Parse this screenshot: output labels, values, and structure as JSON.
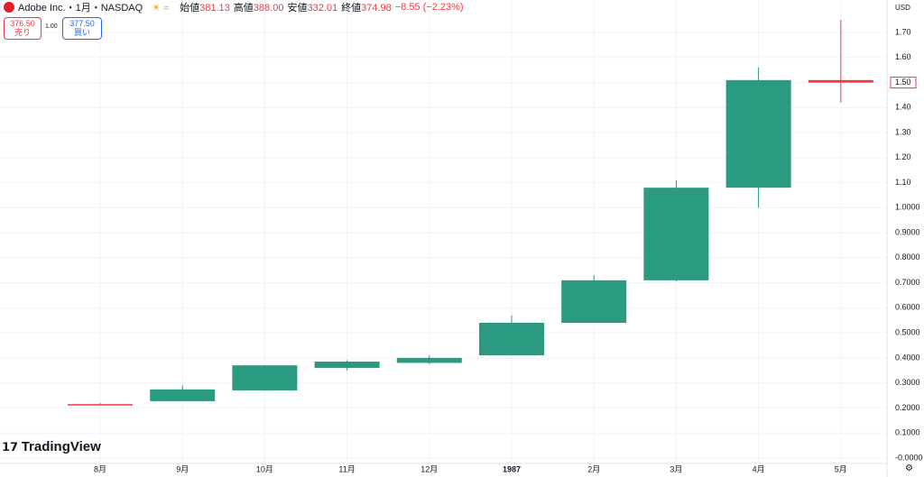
{
  "header": {
    "symbol": "Adobe Inc.・1月・NASDAQ",
    "stats": [
      {
        "name": "始値",
        "value": "381.13"
      },
      {
        "name": "高値",
        "value": "388.00"
      },
      {
        "name": "安値",
        "value": "332.01"
      },
      {
        "name": "終値",
        "value": "374.98"
      }
    ],
    "change": "−8.55 (−2.23%)",
    "sell_price": "376.50",
    "sell_label": "売り",
    "spread": "1.00",
    "buy_price": "377.50",
    "buy_label": "買い",
    "currency": "USD",
    "logo": "TradingView"
  },
  "chart_data": {
    "type": "candlestick",
    "categories": [
      "8月",
      "9月",
      "10月",
      "11月",
      "12月",
      "1987",
      "2月",
      "3月",
      "4月",
      "5月"
    ],
    "open": [
      0.215,
      0.227,
      0.27,
      0.36,
      0.38,
      0.41,
      0.54,
      0.71,
      1.08,
      1.51
    ],
    "high": [
      0.22,
      0.29,
      0.37,
      0.39,
      0.41,
      0.57,
      0.73,
      1.11,
      1.56,
      1.75
    ],
    "low": [
      0.21,
      0.227,
      0.27,
      0.35,
      0.375,
      0.41,
      0.54,
      0.705,
      1.0,
      1.42
    ],
    "close": [
      0.21,
      0.274,
      0.37,
      0.385,
      0.4,
      0.54,
      0.71,
      1.08,
      1.51,
      1.5
    ],
    "up_color": "#2a9a80",
    "down_color": "#f23645",
    "ylim": [
      -0.022,
      1.83
    ],
    "yticks": [
      {
        "value": 1.7,
        "label": "1.70"
      },
      {
        "value": 1.6,
        "label": "1.60"
      },
      {
        "value": 1.5,
        "label": "1.50"
      },
      {
        "value": 1.4,
        "label": "1.40"
      },
      {
        "value": 1.3,
        "label": "1.30"
      },
      {
        "value": 1.2,
        "label": "1.20"
      },
      {
        "value": 1.1,
        "label": "1.10"
      },
      {
        "value": 1.0,
        "label": "1.0000"
      },
      {
        "value": 0.9,
        "label": "0.9000"
      },
      {
        "value": 0.8,
        "label": "0.8000"
      },
      {
        "value": 0.7,
        "label": "0.7000"
      },
      {
        "value": 0.6,
        "label": "0.6000"
      },
      {
        "value": 0.5,
        "label": "0.5000"
      },
      {
        "value": 0.4,
        "label": "0.4000"
      },
      {
        "value": 0.3,
        "label": "0.3000"
      },
      {
        "value": 0.2,
        "label": "0.2000"
      },
      {
        "value": 0.1,
        "label": "0.1000"
      },
      {
        "value": 0,
        "label": "-0.0000"
      }
    ],
    "last_price": {
      "value": 1.5,
      "label": "1.50"
    },
    "grid": true
  }
}
